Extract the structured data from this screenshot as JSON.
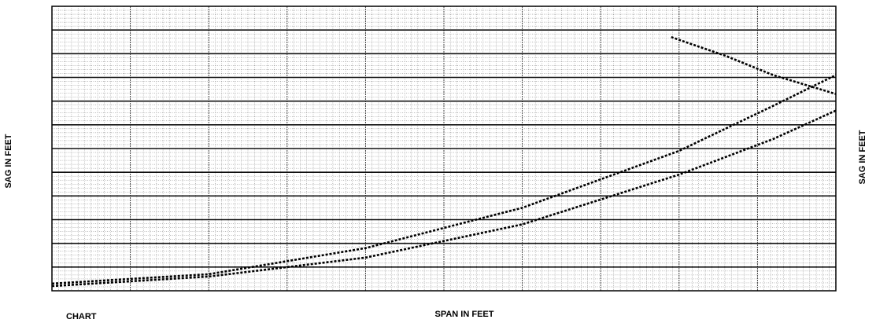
{
  "chart_data": {
    "type": "line",
    "title": "",
    "xlabel": "SPAN IN FEET",
    "ylabel_left": "SAG IN FEET",
    "ylabel_right": "SAG IN FEET",
    "caption": "CHART",
    "x_tick_labels": [
      "",
      "",
      "",
      "",
      "",
      "",
      "",
      "",
      "",
      "",
      ""
    ],
    "y_tick_labels_left": [
      "",
      "",
      "",
      "",
      "",
      "",
      "",
      "",
      "",
      "",
      "",
      "",
      ""
    ],
    "y_tick_labels_right": [
      "",
      "",
      "",
      "",
      "",
      "",
      "",
      "",
      "",
      "",
      "",
      ""
    ],
    "xlim": [
      0,
      10
    ],
    "ylim": [
      0,
      12
    ],
    "grid": true,
    "series": [
      {
        "values": [
          [
            0,
            0.3
          ],
          [
            2,
            0.7
          ],
          [
            4,
            1.8
          ],
          [
            6,
            3.5
          ],
          [
            8,
            5.9
          ],
          [
            9.2,
            7.8
          ],
          [
            10,
            9.1
          ]
        ]
      },
      {
        "values": [
          [
            0,
            0.2
          ],
          [
            2,
            0.6
          ],
          [
            4,
            1.4
          ],
          [
            6,
            2.8
          ],
          [
            8,
            4.9
          ],
          [
            9.2,
            6.4
          ],
          [
            10,
            7.6
          ]
        ]
      },
      {
        "values": [
          [
            7.9,
            10.7
          ],
          [
            8.6,
            9.9
          ],
          [
            9.2,
            9.1
          ],
          [
            10,
            8.3
          ]
        ]
      }
    ],
    "colors": {
      "ink": "#000000",
      "grid": "#777777",
      "background": "#ffffff"
    }
  }
}
